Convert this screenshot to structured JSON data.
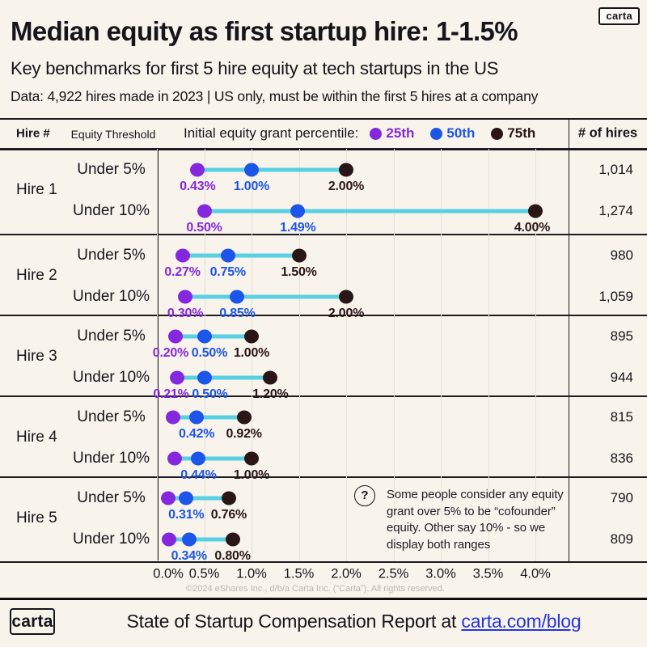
{
  "brand": {
    "wordmark": "carta"
  },
  "header": {
    "title": "Median equity as first startup hire: 1-1.5%",
    "subtitle": "Key benchmarks for first 5 hire equity at tech startups in the US",
    "dataline": "Data: 4,922 hires made in 2023 | US only, must be within the first 5 hires at a company"
  },
  "table": {
    "col_hire": "Hire #",
    "col_threshold": "Equity Threshold",
    "legend_title": "Initial equity grant percentile:",
    "col_hires": "# of hires",
    "legend": [
      {
        "label": "25th",
        "color": "#8527dd"
      },
      {
        "label": "50th",
        "color": "#1d55e8"
      },
      {
        "label": "75th",
        "color": "#2a1517"
      }
    ]
  },
  "colors": {
    "p25": "#8527dd",
    "p50": "#1d55e8",
    "p75": "#2a1517",
    "connector": "#56d0e2",
    "link": "#2434e0",
    "background": "#f8f4ec"
  },
  "chart_data": {
    "type": "scatter",
    "subtype": "dumbbell-dot-plot",
    "x_unit": "percent equity",
    "x_ticks": [
      {
        "value": 0.0,
        "label": "0.0%"
      },
      {
        "value": 0.5,
        "label": "0.5%"
      },
      {
        "value": 1.0,
        "label": "1.0%"
      },
      {
        "value": 1.5,
        "label": "1.5%"
      },
      {
        "value": 2.0,
        "label": "2.0%"
      },
      {
        "value": 2.5,
        "label": "2.5%"
      },
      {
        "value": 3.0,
        "label": "3.0%"
      },
      {
        "value": 3.5,
        "label": "3.5%"
      },
      {
        "value": 4.0,
        "label": "4.0%"
      }
    ],
    "series_names": [
      "25th percentile",
      "50th percentile",
      "75th percentile"
    ],
    "groups": [
      {
        "hire": "Hire 1",
        "rows": [
          {
            "threshold": "Under 5%",
            "hires": "1,014",
            "points": [
              {
                "pct": "25th",
                "value": 0.43,
                "label": "0.43%"
              },
              {
                "pct": "50th",
                "value": 1.0,
                "label": "1.00%"
              },
              {
                "pct": "75th",
                "value": 2.0,
                "label": "2.00%"
              }
            ]
          },
          {
            "threshold": "Under 10%",
            "hires": "1,274",
            "points": [
              {
                "pct": "25th",
                "value": 0.5,
                "label": "0.50%"
              },
              {
                "pct": "50th",
                "value": 1.49,
                "label": "1.49%"
              },
              {
                "pct": "75th",
                "value": 4.0,
                "label": "4.00%"
              }
            ]
          }
        ]
      },
      {
        "hire": "Hire 2",
        "rows": [
          {
            "threshold": "Under 5%",
            "hires": "980",
            "points": [
              {
                "pct": "25th",
                "value": 0.27,
                "label": "0.27%"
              },
              {
                "pct": "50th",
                "value": 0.75,
                "label": "0.75%"
              },
              {
                "pct": "75th",
                "value": 1.5,
                "label": "1.50%"
              }
            ]
          },
          {
            "threshold": "Under 10%",
            "hires": "1,059",
            "points": [
              {
                "pct": "25th",
                "value": 0.3,
                "label": "0.30%"
              },
              {
                "pct": "50th",
                "value": 0.85,
                "label": "0.85%"
              },
              {
                "pct": "75th",
                "value": 2.0,
                "label": "2.00%"
              }
            ]
          }
        ]
      },
      {
        "hire": "Hire 3",
        "rows": [
          {
            "threshold": "Under 5%",
            "hires": "895",
            "points": [
              {
                "pct": "25th",
                "value": 0.2,
                "label": "0.20%"
              },
              {
                "pct": "50th",
                "value": 0.5,
                "label": "0.50%"
              },
              {
                "pct": "75th",
                "value": 1.0,
                "label": "1.00%"
              }
            ]
          },
          {
            "threshold": "Under 10%",
            "hires": "944",
            "points": [
              {
                "pct": "25th",
                "value": 0.21,
                "label": "0.21%"
              },
              {
                "pct": "50th",
                "value": 0.5,
                "label": "0.50%"
              },
              {
                "pct": "75th",
                "value": 1.2,
                "label": "1.20%"
              }
            ]
          }
        ]
      },
      {
        "hire": "Hire 4",
        "rows": [
          {
            "threshold": "Under 5%",
            "hires": "815",
            "points": [
              {
                "pct": "25th",
                "value": 0.17,
                "label": ""
              },
              {
                "pct": "50th",
                "value": 0.42,
                "label": "0.42%"
              },
              {
                "pct": "75th",
                "value": 0.92,
                "label": "0.92%"
              }
            ]
          },
          {
            "threshold": "Under 10%",
            "hires": "836",
            "points": [
              {
                "pct": "25th",
                "value": 0.19,
                "label": ""
              },
              {
                "pct": "50th",
                "value": 0.44,
                "label": "0.44%"
              },
              {
                "pct": "75th",
                "value": 1.0,
                "label": "1.00%"
              }
            ]
          }
        ]
      },
      {
        "hire": "Hire 5",
        "rows": [
          {
            "threshold": "Under 5%",
            "hires": "790",
            "points": [
              {
                "pct": "25th",
                "value": 0.12,
                "label": ""
              },
              {
                "pct": "50th",
                "value": 0.31,
                "label": "0.31%"
              },
              {
                "pct": "75th",
                "value": 0.76,
                "label": "0.76%"
              }
            ]
          },
          {
            "threshold": "Under 10%",
            "hires": "809",
            "points": [
              {
                "pct": "25th",
                "value": 0.13,
                "label": ""
              },
              {
                "pct": "50th",
                "value": 0.34,
                "label": "0.34%"
              },
              {
                "pct": "75th",
                "value": 0.8,
                "label": "0.80%"
              }
            ]
          }
        ]
      }
    ]
  },
  "annotation": {
    "icon": "?",
    "text": "Some people consider any equity grant over 5% to be “cofounder” equity. Other say 10% - so we display both ranges"
  },
  "footer": {
    "copyright": "©2024 eShares Inc., d/b/a Carta Inc. (“Carta”). All rights reserved.",
    "report_prefix": "State of Startup Compensation Report at ",
    "link_text": "carta.com/blog"
  }
}
